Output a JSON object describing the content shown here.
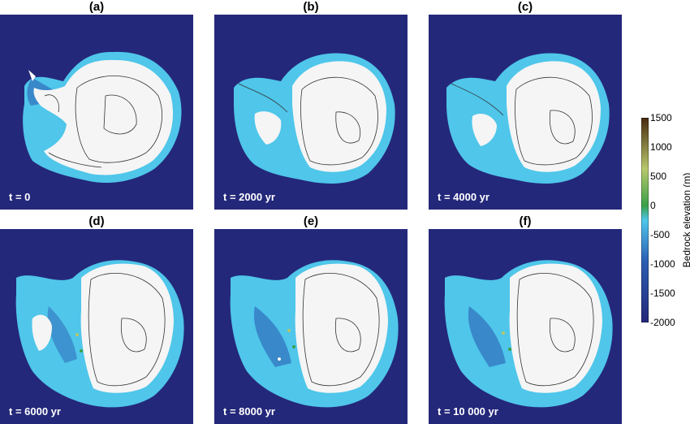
{
  "panels": [
    {
      "title": "(a)",
      "time": "t = 0"
    },
    {
      "title": "(b)",
      "time": "t = 2000 yr"
    },
    {
      "title": "(c)",
      "time": "t = 4000 yr"
    },
    {
      "title": "(d)",
      "time": "t = 6000 yr"
    },
    {
      "title": "(e)",
      "time": "t = 8000 yr"
    },
    {
      "title": "(f)",
      "time": "t = 10 000 yr"
    }
  ],
  "colorbar": {
    "label": "Bedrock elevation (m)",
    "ticks": [
      "1500",
      "1000",
      "500",
      "0",
      "-500",
      "-1000",
      "-1500",
      "-2000"
    ],
    "range": [
      -2000,
      1500
    ],
    "colors": {
      "deep": "#24287a",
      "mid_deep": "#2c5fb4",
      "shelf": "#4fc6ea",
      "zero": "#3aa04a",
      "low_land": "#b7c86a",
      "high_land": "#4a2a10",
      "ice": "#f5f5f5"
    }
  }
}
